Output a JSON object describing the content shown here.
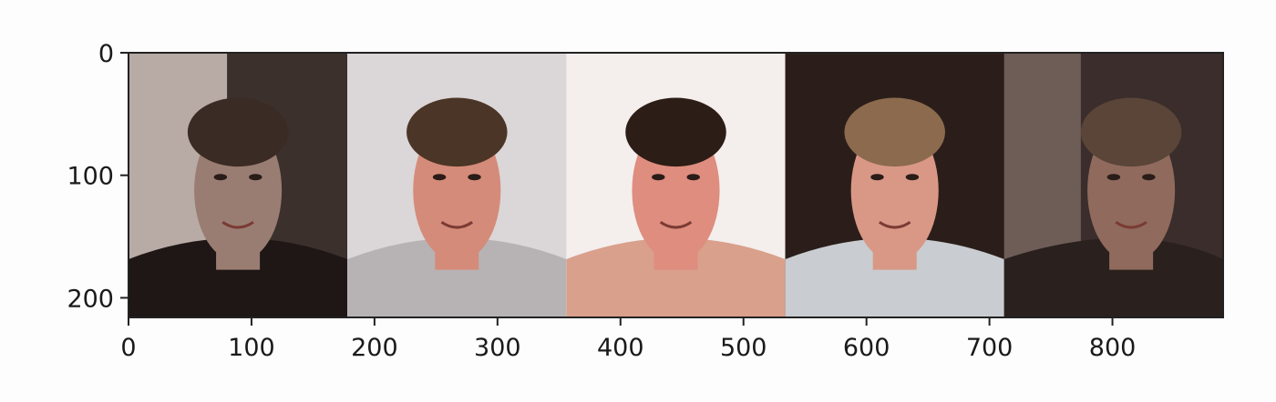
{
  "chart_data": {
    "type": "image",
    "title": "",
    "xlabel": "",
    "ylabel": "",
    "xlim": [
      0,
      890
    ],
    "ylim": [
      216,
      0
    ],
    "x_ticks": [
      0,
      100,
      200,
      300,
      400,
      500,
      600,
      700,
      800
    ],
    "y_ticks": [
      0,
      100,
      200
    ],
    "x_tick_labels": [
      "0",
      "100",
      "200",
      "300",
      "400",
      "500",
      "600",
      "700",
      "800"
    ],
    "y_tick_labels": [
      "0",
      "100",
      "200"
    ],
    "grid": false,
    "panels": [
      {
        "name": "face-1",
        "x_range": [
          0,
          178
        ],
        "background": "#3b302c",
        "backdrop": "#b8aba6",
        "skin": "#9a7d72",
        "hair": "#3a2b24",
        "clothing": "#1e1715"
      },
      {
        "name": "face-2",
        "x_range": [
          178,
          356
        ],
        "background": "#e6e1e1",
        "backdrop": "#d9d5d6",
        "skin": "#d58b79",
        "hair": "#4b3526",
        "clothing": "#b7b3b4"
      },
      {
        "name": "face-3",
        "x_range": [
          356,
          534
        ],
        "background": "#f0ecec",
        "backdrop": "#f4eeed",
        "skin": "#de8d7e",
        "hair": "#2c1d16",
        "clothing": "#d9a08c"
      },
      {
        "name": "face-4",
        "x_range": [
          534,
          712
        ],
        "background": "#2b1e1a",
        "backdrop": "#2b1e1a",
        "skin": "#d99886",
        "hair": "#8c6a4d",
        "clothing": "#c9cdd1"
      },
      {
        "name": "face-5",
        "x_range": [
          712,
          890
        ],
        "background": "#3a2d2b",
        "backdrop": "#6e5c57",
        "skin": "#8f6a5d",
        "hair": "#5a4538",
        "clothing": "#2a201d"
      }
    ]
  }
}
